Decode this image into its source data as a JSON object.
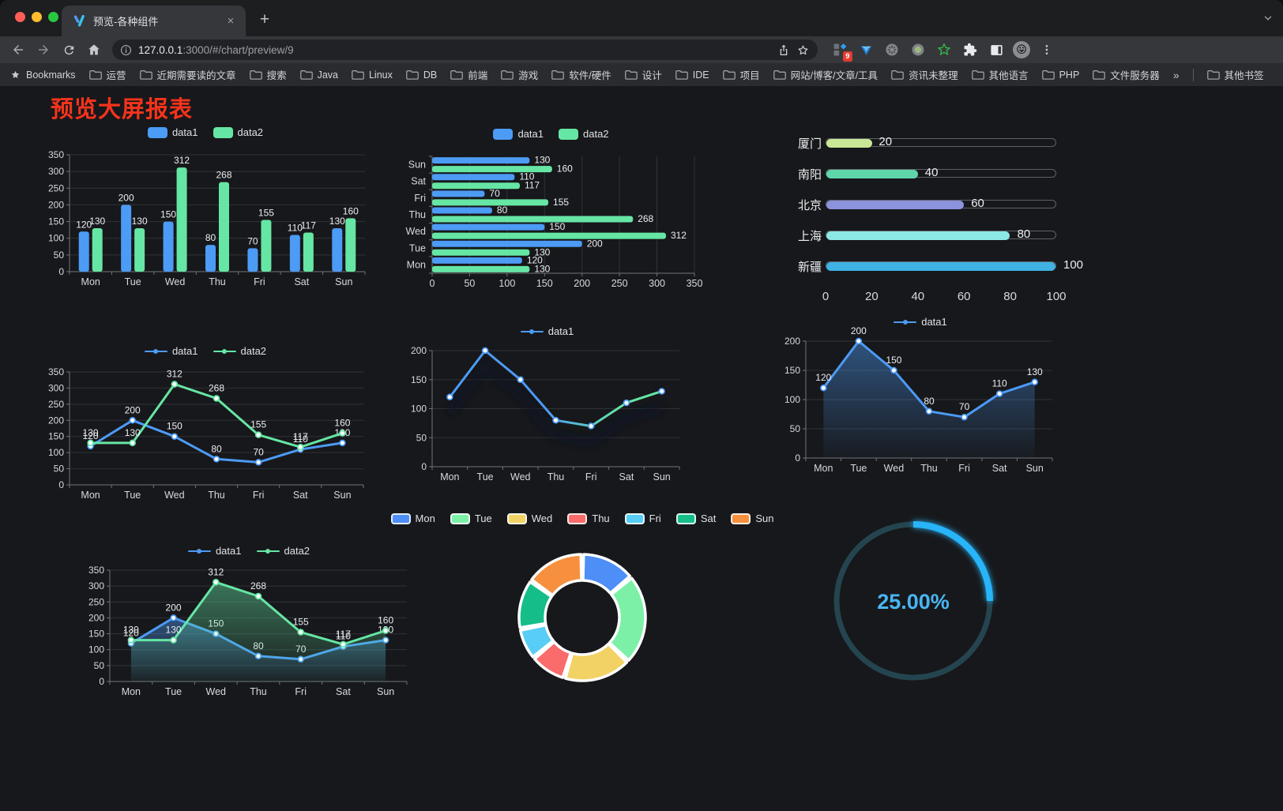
{
  "browser": {
    "tab": {
      "title": "预览-各种组件"
    },
    "url": {
      "host": "127.0.0.1",
      "rest": ":3000/#/chart/preview/9"
    },
    "extension_badge": "9",
    "glyphs": {
      "close": "×",
      "new_tab": "+",
      "overflow": "»",
      "menu_chevron": "˅",
      "emoji": "😛"
    },
    "bookmarks_label": "Bookmarks",
    "bookmarks": [
      {
        "icon": "folder",
        "label": "运营"
      },
      {
        "icon": "folder",
        "label": "近期需要读的文章"
      },
      {
        "icon": "folder",
        "label": "搜索"
      },
      {
        "icon": "folder",
        "label": "Java"
      },
      {
        "icon": "folder",
        "label": "Linux"
      },
      {
        "icon": "folder",
        "label": "DB"
      },
      {
        "icon": "folder",
        "label": "前端"
      },
      {
        "icon": "folder",
        "label": "游戏"
      },
      {
        "icon": "folder",
        "label": "软件/硬件"
      },
      {
        "icon": "folder",
        "label": "设计"
      },
      {
        "icon": "folder",
        "label": "IDE"
      },
      {
        "icon": "folder",
        "label": "项目"
      },
      {
        "icon": "folder",
        "label": "网站/博客/文章/工具"
      },
      {
        "icon": "folder",
        "label": "资讯未整理"
      },
      {
        "icon": "folder",
        "label": "其他语言"
      },
      {
        "icon": "folder",
        "label": "PHP"
      },
      {
        "icon": "folder",
        "label": "文件服务器"
      }
    ],
    "other_bookmarks": "其他书签"
  },
  "page": {
    "title": "预览大屏报表",
    "title_color": "#f5331c",
    "background": "#17181b"
  },
  "chart_data": [
    {
      "id": "bar-grouped",
      "type": "bar",
      "categories": [
        "Mon",
        "Tue",
        "Wed",
        "Thu",
        "Fri",
        "Sat",
        "Sun"
      ],
      "series": [
        {
          "name": "data1",
          "color": "#4c9bf5",
          "values": [
            120,
            200,
            150,
            80,
            70,
            110,
            130
          ]
        },
        {
          "name": "data2",
          "color": "#66e6a4",
          "values": [
            130,
            130,
            312,
            268,
            155,
            117,
            160
          ]
        }
      ],
      "ylim": [
        0,
        350
      ],
      "ystep": 50,
      "grid": true,
      "legend_position": "top",
      "labels": true
    },
    {
      "id": "bar-horizontal",
      "type": "bar",
      "orientation": "horizontal",
      "categories": [
        "Mon",
        "Tue",
        "Wed",
        "Thu",
        "Fri",
        "Sat",
        "Sun"
      ],
      "series": [
        {
          "name": "data1",
          "color": "#4c9bf5",
          "values": [
            120,
            200,
            150,
            80,
            70,
            110,
            130
          ]
        },
        {
          "name": "data2",
          "color": "#66e6a4",
          "values": [
            130,
            130,
            312,
            268,
            155,
            117,
            160
          ]
        }
      ],
      "xlim": [
        0,
        350
      ],
      "xstep": 50,
      "grid": true,
      "legend_position": "top",
      "labels": true
    },
    {
      "id": "progress-list",
      "type": "bar",
      "subtype": "progress",
      "items": [
        {
          "label": "厦门",
          "value": 20,
          "color": "#c9e795"
        },
        {
          "label": "南阳",
          "value": 40,
          "color": "#5fd6a9"
        },
        {
          "label": "北京",
          "value": 60,
          "color": "#8b93dd"
        },
        {
          "label": "上海",
          "value": 80,
          "color": "#8ce8e3"
        },
        {
          "label": "新疆",
          "value": 100,
          "color": "#3fb1e3"
        }
      ],
      "max": 100,
      "axis_ticks": [
        0,
        20,
        40,
        60,
        80,
        100
      ]
    },
    {
      "id": "line-two-series",
      "type": "line",
      "categories": [
        "Mon",
        "Tue",
        "Wed",
        "Thu",
        "Fri",
        "Sat",
        "Sun"
      ],
      "series": [
        {
          "name": "data1",
          "color": "#4c9bf5",
          "values": [
            120,
            200,
            150,
            80,
            70,
            110,
            130
          ]
        },
        {
          "name": "data2",
          "color": "#66e6a4",
          "values": [
            130,
            130,
            312,
            268,
            155,
            117,
            160
          ]
        }
      ],
      "ylim": [
        0,
        350
      ],
      "ystep": 50,
      "labels": true,
      "legend_position": "top"
    },
    {
      "id": "line-gradient",
      "type": "line",
      "categories": [
        "Mon",
        "Tue",
        "Wed",
        "Thu",
        "Fri",
        "Sat",
        "Sun"
      ],
      "series": [
        {
          "name": "data1",
          "color": "#4c9bf5",
          "color_start": "#4c9bf5",
          "color_end": "#63e6a5",
          "values": [
            120,
            200,
            150,
            80,
            70,
            110,
            130
          ]
        }
      ],
      "ylim": [
        0,
        200
      ],
      "ystep": 50,
      "labels": false,
      "shadow": true,
      "legend_position": "top"
    },
    {
      "id": "area-single",
      "type": "area",
      "categories": [
        "Mon",
        "Tue",
        "Wed",
        "Thu",
        "Fri",
        "Sat",
        "Sun"
      ],
      "series": [
        {
          "name": "data1",
          "color": "#4c9bf5",
          "values": [
            120,
            200,
            150,
            80,
            70,
            110,
            130
          ]
        }
      ],
      "ylim": [
        0,
        200
      ],
      "ystep": 50,
      "labels": true,
      "area": true,
      "legend_position": "top"
    },
    {
      "id": "area-two-series",
      "type": "area",
      "categories": [
        "Mon",
        "Tue",
        "Wed",
        "Thu",
        "Fri",
        "Sat",
        "Sun"
      ],
      "series": [
        {
          "name": "data1",
          "color": "#4c9bf5",
          "values": [
            120,
            200,
            150,
            80,
            70,
            110,
            130
          ]
        },
        {
          "name": "data2",
          "color": "#66e6a4",
          "values": [
            130,
            130,
            312,
            268,
            155,
            117,
            160
          ]
        }
      ],
      "ylim": [
        0,
        350
      ],
      "ystep": 50,
      "labels": true,
      "area": true,
      "legend_position": "top"
    },
    {
      "id": "donut",
      "type": "pie",
      "categories": [
        "Mon",
        "Tue",
        "Wed",
        "Thu",
        "Fri",
        "Sat",
        "Sun"
      ],
      "values": [
        120,
        200,
        150,
        80,
        70,
        110,
        130
      ],
      "colors": [
        "#4e8ef7",
        "#7df0a8",
        "#f2d264",
        "#fa6b6b",
        "#58cdf5",
        "#15bd89",
        "#f7903e"
      ],
      "donut": true,
      "legend_position": "top"
    },
    {
      "id": "gauge",
      "type": "gauge",
      "value": 25,
      "max": 100,
      "label": "25.00%",
      "color": "#28b4f8",
      "track_color": "#24454f",
      "text_color": "#49b5f2"
    }
  ]
}
